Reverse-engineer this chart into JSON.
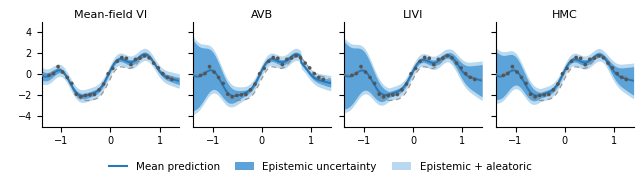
{
  "titles": [
    "Mean-field VI",
    "AVB",
    "LIVI",
    "HMC"
  ],
  "xlim": [
    -1.4,
    1.4
  ],
  "ylim": [
    -5,
    5
  ],
  "xticks": [
    -1,
    0,
    1
  ],
  "yticks": [
    -4,
    -2,
    0,
    2,
    4
  ],
  "mean_line_color": "#2878b8",
  "epistemic_color": "#5ba3d9",
  "epistemic_aleatoric_color": "#b8d9f0",
  "data_color": "#555555",
  "dashed_color": "#888888",
  "legend_labels": [
    "Mean prediction",
    "Epistemic uncertainty",
    "Epistemic + aleatoric"
  ],
  "figsize": [
    6.4,
    1.81
  ],
  "dpi": 100
}
